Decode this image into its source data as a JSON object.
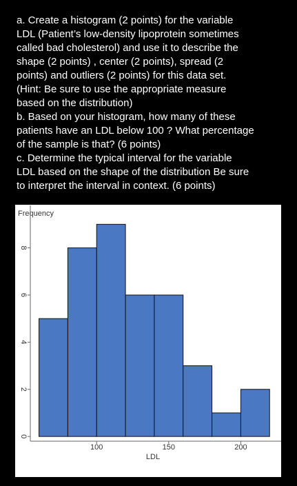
{
  "question_lines": [
    "a. Create a histogram (2 points) for the variable",
    "LDL (Patient’s low-density lipoprotein sometimes",
    "called bad cholesterol) and use it to describe the",
    "shape (2 points) , center (2 points), spread (2",
    "points) and outliers (2 points) for this data set.",
    "(Hint: Be sure to use the appropriate measure",
    "based on the distribution)",
    "b. Based on your histogram, how many of these",
    "patients have an LDL below 100 ? What percentage",
    "of the sample is that? (6 points)",
    "c. Determine the typical interval for the variable",
    "LDL based on the shape of the distribution Be sure",
    "to interpret the interval in context. (6 points)"
  ],
  "chart_data": {
    "type": "histogram",
    "x_label": "LDL",
    "y_label": "Frequency",
    "bins": [
      60,
      80,
      100,
      120,
      140,
      160,
      180,
      200,
      220
    ],
    "values": [
      5,
      8,
      9,
      6,
      6,
      3,
      1,
      2
    ],
    "color": "#4a78c2",
    "xlim": [
      54,
      228
    ],
    "xticks": [
      100,
      150,
      200
    ],
    "ylim": [
      -0.2,
      9.8
    ],
    "yticks": [
      0,
      2,
      4,
      6,
      8
    ]
  }
}
